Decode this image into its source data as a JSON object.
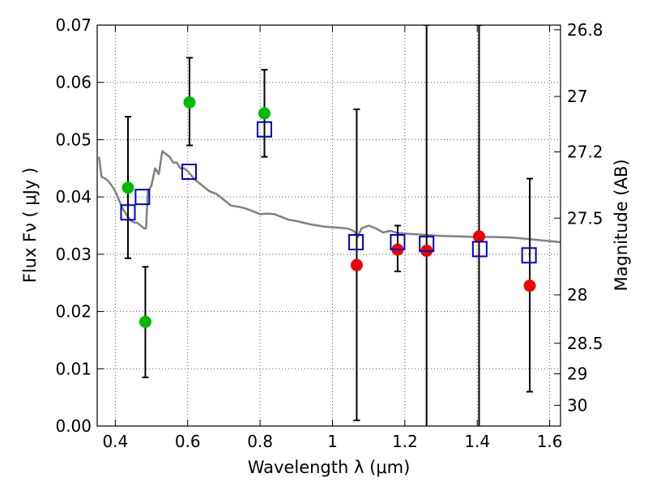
{
  "chart_data": {
    "type": "scatter",
    "title": "",
    "xlabel": "Wavelength  λ (μm)",
    "ylabel": "Flux  Fν  ( μJy )",
    "y2label": "Magnitude (AB)",
    "xlim": [
      0.35,
      1.63
    ],
    "ylim": [
      0.0,
      0.07
    ],
    "grid": true,
    "x_ticks": [
      {
        "value": 0.4,
        "label": "0.4"
      },
      {
        "value": 0.6,
        "label": "0.6"
      },
      {
        "value": 0.8,
        "label": "0.8"
      },
      {
        "value": 1.0,
        "label": "1"
      },
      {
        "value": 1.2,
        "label": "1.2"
      },
      {
        "value": 1.4,
        "label": "1.4"
      },
      {
        "value": 1.6,
        "label": "1.6"
      }
    ],
    "y_ticks": [
      {
        "value": 0.0,
        "label": "0.00"
      },
      {
        "value": 0.01,
        "label": "0.01"
      },
      {
        "value": 0.02,
        "label": "0.02"
      },
      {
        "value": 0.03,
        "label": "0.03"
      },
      {
        "value": 0.04,
        "label": "0.04"
      },
      {
        "value": 0.05,
        "label": "0.05"
      },
      {
        "value": 0.06,
        "label": "0.06"
      },
      {
        "value": 0.07,
        "label": "0.07"
      }
    ],
    "y2_ticks": [
      {
        "value": 26.8,
        "label": "26.8"
      },
      {
        "value": 27.0,
        "label": "27"
      },
      {
        "value": 27.2,
        "label": "27.2"
      },
      {
        "value": 27.5,
        "label": "27.5"
      },
      {
        "value": 28.0,
        "label": "28"
      },
      {
        "value": 28.5,
        "label": "28.5"
      },
      {
        "value": 29.0,
        "label": "29"
      },
      {
        "value": 30.0,
        "label": "30"
      }
    ],
    "colors": {
      "model": "#808080",
      "green": "#00bb00",
      "red": "#ee0000",
      "squares": "#0000cc",
      "errorbar": "#000000",
      "grid": "#555555"
    },
    "series": [
      {
        "marker": "line",
        "x": [
          0.355,
          0.362,
          0.37,
          0.38,
          0.39,
          0.4,
          0.41,
          0.42,
          0.43,
          0.44,
          0.45,
          0.455,
          0.46,
          0.47,
          0.48,
          0.485,
          0.49,
          0.5,
          0.51,
          0.52,
          0.53,
          0.54,
          0.55,
          0.56,
          0.57,
          0.58,
          0.59,
          0.6,
          0.62,
          0.64,
          0.66,
          0.68,
          0.7,
          0.72,
          0.74,
          0.76,
          0.78,
          0.8,
          0.82,
          0.84,
          0.86,
          0.88,
          0.9,
          0.92,
          0.94,
          0.96,
          0.98,
          1.0,
          1.02,
          1.04,
          1.05,
          1.06,
          1.07,
          1.08,
          1.1,
          1.12,
          1.14,
          1.16,
          1.18,
          1.2,
          1.25,
          1.3,
          1.35,
          1.4,
          1.45,
          1.5,
          1.55,
          1.6,
          1.63
        ],
        "y": [
          0.047,
          0.0435,
          0.0433,
          0.0428,
          0.042,
          0.041,
          0.0395,
          0.038,
          0.037,
          0.036,
          0.0356,
          0.0355,
          0.0355,
          0.035,
          0.0345,
          0.0345,
          0.041,
          0.042,
          0.045,
          0.044,
          0.048,
          0.0475,
          0.047,
          0.046,
          0.046,
          0.045,
          0.045,
          0.0445,
          0.043,
          0.042,
          0.041,
          0.0405,
          0.0395,
          0.0385,
          0.0383,
          0.038,
          0.0375,
          0.037,
          0.0371,
          0.037,
          0.0365,
          0.036,
          0.0358,
          0.0355,
          0.0352,
          0.035,
          0.0348,
          0.0347,
          0.0346,
          0.0345,
          0.0343,
          0.034,
          0.033,
          0.0345,
          0.035,
          0.0345,
          0.0338,
          0.0341,
          0.0337,
          0.0336,
          0.0334,
          0.0332,
          0.0331,
          0.033,
          0.033,
          0.0329,
          0.0326,
          0.0323,
          0.0321
        ]
      },
      {
        "marker": "circle",
        "color": "green",
        "x": [
          0.435,
          0.483,
          0.605,
          0.812
        ],
        "y": [
          0.0416,
          0.0182,
          0.0565,
          0.0546
        ],
        "yerr_low": [
          0.0293,
          0.0085,
          0.049,
          0.047
        ],
        "yerr_high": [
          0.054,
          0.0278,
          0.0643,
          0.0622
        ]
      },
      {
        "marker": "circle",
        "color": "red",
        "x": [
          1.067,
          1.18,
          1.26,
          1.405,
          1.545
        ],
        "y": [
          0.0281,
          0.0308,
          0.0306,
          0.0331,
          0.0245
        ],
        "yerr_low": [
          0.001,
          0.027,
          -0.001,
          -0.001,
          0.006
        ],
        "yerr_high": [
          0.0553,
          0.035,
          0.07,
          0.07,
          0.0432
        ]
      },
      {
        "marker": "square",
        "color": "squares",
        "x": [
          0.435,
          0.475,
          0.604,
          0.812,
          1.065,
          1.18,
          1.26,
          1.407,
          1.543
        ],
        "y": [
          0.0373,
          0.04,
          0.0444,
          0.0518,
          0.0321,
          0.0321,
          0.0318,
          0.0309,
          0.0298
        ]
      }
    ]
  }
}
